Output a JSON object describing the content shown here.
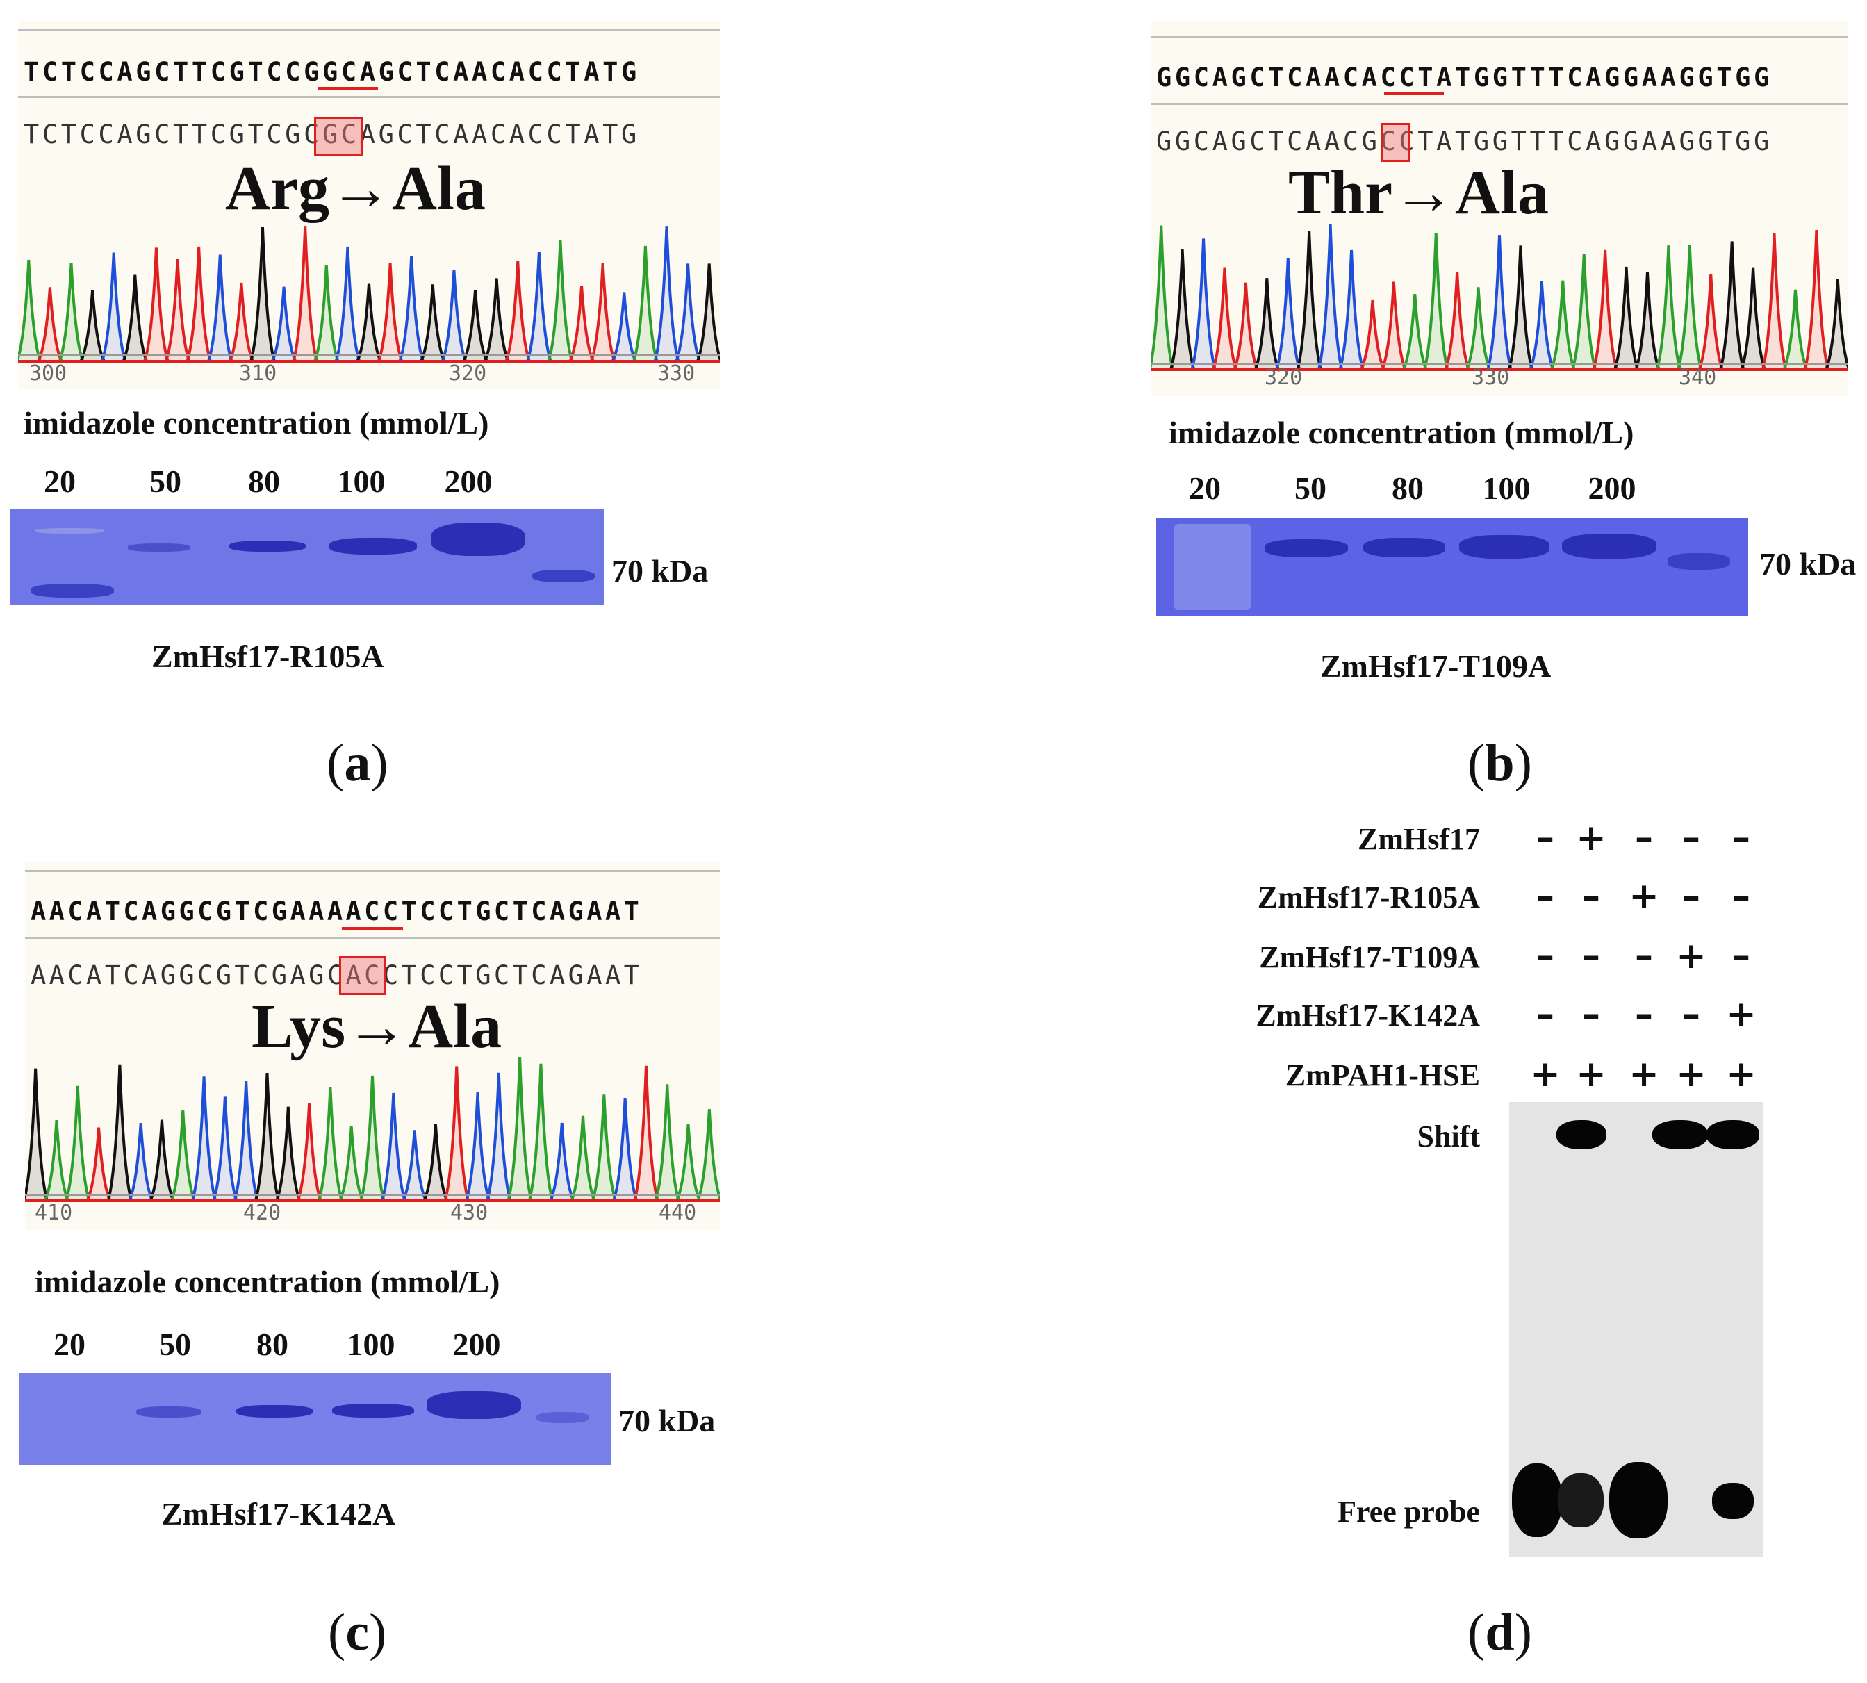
{
  "panels": {
    "a": {
      "letter": "a",
      "ref_seq": "TCTCCAGCTTCGTCCGGCAGCTCAACACCTATG",
      "mut_seq": "TCTCCAGCTTCGTCGCGCAGCTCAACACCTATG",
      "mutation": "Arg→Ala",
      "axis": [
        "300",
        "310",
        "320",
        "330"
      ],
      "imidazole_title": "imidazole concentration (mmol/L)",
      "lanes": [
        "20",
        "50",
        "80",
        "100",
        "200"
      ],
      "marker": "70 kDa",
      "name": "ZmHsf17-R105A"
    },
    "b": {
      "letter": "b",
      "ref_seq": "GGCAGCTCAACACCTATGGTTTCAGGAAGGTGG",
      "mut_seq": "GGCAGCTCAACGCCTATGGTTTCAGGAAGGTGG",
      "mutation": "Thr→Ala",
      "axis": [
        "320",
        "330",
        "340"
      ],
      "imidazole_title": "imidazole concentration (mmol/L)",
      "lanes": [
        "20",
        "50",
        "80",
        "100",
        "200"
      ],
      "marker": "70 kDa",
      "name": "ZmHsf17-T109A"
    },
    "c": {
      "letter": "c",
      "ref_seq": "AACATCAGGCGTCGAAAACCTCCTGCTCAGAAT",
      "mut_seq": "AACATCAGGCGTCGAGCACCTCCTGCTCAGAAT",
      "mutation": "Lys→Ala",
      "axis": [
        "410",
        "420",
        "430",
        "440"
      ],
      "imidazole_title": "imidazole concentration (mmol/L)",
      "lanes": [
        "20",
        "50",
        "80",
        "100",
        "200"
      ],
      "marker": "70 kDa",
      "name": "ZmHsf17-K142A"
    },
    "d": {
      "letter": "d",
      "rows": [
        {
          "label": "ZmHsf17",
          "signs": [
            "-",
            "+",
            "-",
            "-",
            "-"
          ]
        },
        {
          "label": "ZmHsf17-R105A",
          "signs": [
            "-",
            "-",
            "+",
            "-",
            "-"
          ]
        },
        {
          "label": "ZmHsf17-T109A",
          "signs": [
            "-",
            "-",
            "-",
            "+",
            "-"
          ]
        },
        {
          "label": "ZmHsf17-K142A",
          "signs": [
            "-",
            "-",
            "-",
            "-",
            "+"
          ]
        },
        {
          "label": "ZmPAH1-HSE",
          "signs": [
            "+",
            "+",
            "+",
            "+",
            "+"
          ]
        }
      ],
      "shift_label": "Shift",
      "free_probe_label": "Free probe"
    }
  },
  "colors": {
    "trace_a": "#2ca02c",
    "trace_c": "#1f4fd8",
    "trace_g": "#111111",
    "trace_t": "#e02020",
    "gel_bg": "#6f76e6",
    "gel_band": "#2b2fb6"
  }
}
